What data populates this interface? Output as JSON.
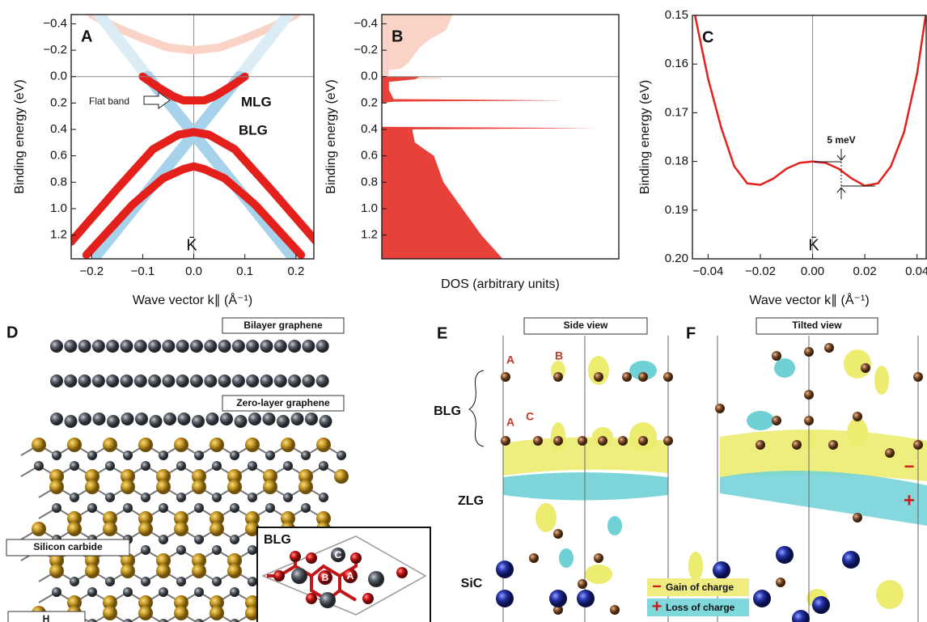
{
  "chart_data": [
    {
      "type": "line",
      "panel_label": "A",
      "ylabel": "Binding energy (eV)",
      "xlabel": "Wave vector k∥ (Å⁻¹)",
      "xlim": [
        -0.24,
        0.235
      ],
      "ylim": [
        -0.47,
        1.38
      ],
      "y_inverted": true,
      "zero_lines": [
        "x",
        "y"
      ],
      "xticks": [
        {
          "value": -0.2,
          "label": "−0.2"
        },
        {
          "value": -0.1,
          "label": "−0.1"
        },
        {
          "value": 0,
          "label": "0.0"
        },
        0.1,
        0.2
      ],
      "yticks": [
        {
          "value": -0.4,
          "label": "−0.4"
        },
        {
          "value": -0.2,
          "label": "−0.2"
        },
        {
          "value": 0,
          "label": "0.0"
        },
        0.2,
        0.4,
        0.6,
        0.8,
        {
          "value": 1,
          "label": "1.0"
        },
        1.2
      ],
      "annotations": [
        "Flat band",
        "K̄"
      ],
      "series": [
        {
          "color": "#f8d3c6",
          "line_width": 10,
          "x": [
            -0.2,
            -0.15,
            -0.1,
            -0.05,
            0,
            0.05,
            0.1,
            0.15,
            0.2
          ],
          "values": [
            -0.47,
            -0.37,
            -0.29,
            -0.22,
            -0.2,
            -0.22,
            -0.29,
            -0.37,
            -0.47
          ]
        },
        {
          "color": "#dcecf7",
          "line_width": 14,
          "x": [
            0.09,
            0.185,
            null,
            -0.09,
            -0.185
          ],
          "values": [
            0,
            -0.47,
            null,
            0,
            -0.47
          ]
        },
        {
          "name": "MLG",
          "color": "#a6d2ec",
          "line_width": 14,
          "x": [
            -0.19,
            0.09,
            null,
            -0.09,
            0.19
          ],
          "values": [
            1.35,
            0,
            null,
            0,
            1.35
          ]
        },
        {
          "name": "BLG",
          "color": "#e3201b",
          "line_width": 10,
          "x": [
            -0.1,
            -0.07,
            -0.04,
            -0.02,
            0,
            0.02,
            0.04,
            0.07,
            0.1,
            null,
            -0.24,
            -0.15,
            -0.08,
            -0.03,
            0,
            0.03,
            0.08,
            0.15,
            0.24,
            null,
            -0.21,
            -0.12,
            -0.06,
            -0.02,
            0,
            0.02,
            0.06,
            0.12,
            0.21
          ],
          "values": [
            0,
            0.08,
            0.15,
            0.18,
            0.18,
            0.18,
            0.15,
            0.08,
            0,
            null,
            1.25,
            0.85,
            0.55,
            0.44,
            0.42,
            0.44,
            0.55,
            0.85,
            1.25,
            null,
            1.35,
            0.97,
            0.77,
            0.7,
            0.68,
            0.7,
            0.77,
            0.97,
            1.35
          ]
        }
      ]
    },
    {
      "type": "dos",
      "panel_label": "B",
      "ylabel": "Binding energy (eV)",
      "xlabel": "DOS (arbitrary units)",
      "xlim": [
        0,
        100
      ],
      "ylim": [
        -0.47,
        1.38
      ],
      "y_inverted": true,
      "zero_lines": [
        "y"
      ],
      "yticks": [
        {
          "value": -0.4,
          "label": "−0.4"
        },
        {
          "value": -0.2,
          "label": "−0.2"
        },
        {
          "value": 0,
          "label": "0.0"
        },
        0.2,
        0.4,
        0.6,
        0.8,
        {
          "value": 1,
          "label": "1.0"
        },
        1.2
      ],
      "series": [
        {
          "color": "#f8d3c6",
          "y": [
            -0.47,
            -0.35,
            -0.28,
            -0.22,
            -0.15,
            -0.1,
            -0.06,
            -0.05,
            0,
            0.01,
            0.015,
            0.02
          ],
          "values": [
            30,
            27,
            20,
            16,
            13,
            11,
            8,
            3,
            3,
            25,
            25,
            0
          ]
        },
        {
          "color": "#e8413a",
          "y": [
            0,
            0.02,
            0.04,
            0.1,
            0.17,
            0.18,
            0.19,
            0.2,
            0.38,
            0.39,
            0.4,
            0.42,
            0.5,
            0.55,
            0.6,
            0.7,
            0.8,
            0.9,
            1.0,
            1.1,
            1.2,
            1.3,
            1.38
          ],
          "values": [
            16,
            14,
            3,
            3,
            5,
            77,
            5,
            0,
            0,
            90,
            13,
            13,
            14,
            18,
            22,
            24,
            26,
            30,
            34,
            38,
            42,
            47,
            51
          ]
        }
      ]
    },
    {
      "type": "line",
      "panel_label": "C",
      "ylabel": "Binding energy (eV)",
      "xlabel": "Wave vector k∥ (Å⁻¹)",
      "xlim": [
        -0.046,
        0.0435
      ],
      "ylim": [
        0.15,
        0.2
      ],
      "y_inverted": true,
      "zero_lines": [
        "x"
      ],
      "xticks": [
        {
          "value": -0.04,
          "label": "−0.04"
        },
        {
          "value": -0.02,
          "label": "−0.02"
        },
        {
          "value": 0,
          "label": "0.00"
        },
        0.02,
        0.04
      ],
      "yticks": [
        0.15,
        0.16,
        0.17,
        0.18,
        0.19,
        {
          "value": 0.2,
          "label": "0.20"
        }
      ],
      "annotations": [
        "5 meV",
        "K̄"
      ],
      "series": [
        {
          "color": "#e3201b",
          "line_width": 2.5,
          "x": [
            -0.045,
            -0.04,
            -0.035,
            -0.03,
            -0.025,
            -0.02,
            -0.015,
            -0.01,
            -0.005,
            0,
            0.005,
            0.01,
            0.015,
            0.02,
            0.025,
            0.03,
            0.035,
            0.04,
            0.0433
          ],
          "values": [
            0.15,
            0.163,
            0.173,
            0.181,
            0.1845,
            0.1848,
            0.1835,
            0.1815,
            0.1803,
            0.18,
            0.1803,
            0.1815,
            0.1835,
            0.185,
            0.1845,
            0.181,
            0.174,
            0.162,
            0.15
          ]
        }
      ]
    }
  ],
  "panels": {
    "D": {
      "label": "D",
      "bilayer": "Bilayer graphene",
      "zero_layer": "Zero-layer graphene",
      "silicon_carbide": "Silicon carbide",
      "hydrogen": "H",
      "inset_title": "BLG",
      "inset_sites": [
        "A",
        "B",
        "C"
      ]
    },
    "E": {
      "label": "E",
      "view": "Side view",
      "site_labels": [
        "A",
        "B",
        "A",
        "C"
      ],
      "layers": [
        "BLG",
        "ZLG",
        "SiC"
      ],
      "legend": [
        {
          "sign": "−",
          "text": "Gain of charge"
        },
        {
          "sign": "+",
          "text": "Loss of charge"
        }
      ]
    },
    "F": {
      "label": "F",
      "view": "Tilted view",
      "signs": [
        "−",
        "+"
      ]
    }
  }
}
